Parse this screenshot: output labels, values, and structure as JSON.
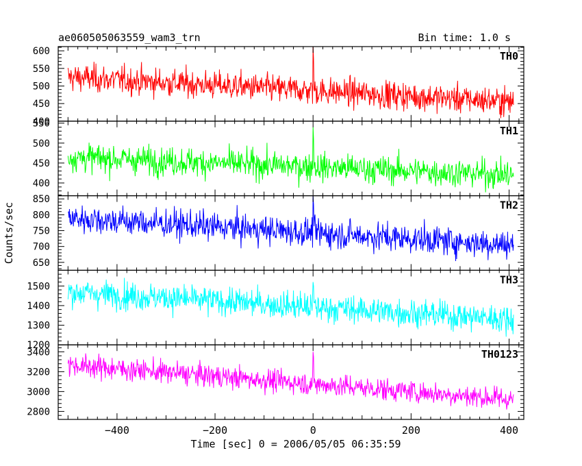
{
  "chart_data": {
    "type": "line",
    "title": "ae060505063559_wam3_trn",
    "subtitle": "Bin time: 1.0 s",
    "ylabel": "Counts/sec",
    "xlabel": "Time [sec] 0 = 2006/05/05 06:35:59",
    "xlim": [
      -520,
      430
    ],
    "x_ticks": [
      -400,
      -200,
      0,
      200,
      400
    ],
    "x_tick_labels": [
      "−400",
      "−200",
      "0",
      "200",
      "400"
    ],
    "bin_time_s": 1.0,
    "x_range": [
      -500,
      409
    ],
    "burst_time": 0,
    "series": [
      {
        "name": "TH0",
        "color": "#ff0000",
        "ylim": [
          400,
          612
        ],
        "y_ticks": [
          400,
          450,
          500,
          550,
          600
        ],
        "start_mean": 525,
        "end_mean": 455,
        "sigma": 28,
        "burst_peak": 612
      },
      {
        "name": "TH1",
        "color": "#00ff00",
        "ylim": [
          368,
          555
        ],
        "y_ticks": [
          400,
          450,
          500,
          550
        ],
        "start_mean": 465,
        "end_mean": 420,
        "sigma": 25,
        "burst_peak": 540
      },
      {
        "name": "TH2",
        "color": "#0000ff",
        "ylim": [
          625,
          860
        ],
        "y_ticks": [
          650,
          700,
          750,
          800,
          850
        ],
        "start_mean": 790,
        "end_mean": 705,
        "sigma": 32,
        "burst_peak": 860
      },
      {
        "name": "TH3",
        "color": "#00ffff",
        "ylim": [
          1200,
          1580
        ],
        "y_ticks": [
          1200,
          1300,
          1400,
          1500
        ],
        "start_mean": 1470,
        "end_mean": 1330,
        "sigma": 50,
        "burst_peak": 1520
      },
      {
        "name": "TH0123",
        "color": "#ff00ff",
        "ylim": [
          2720,
          3470
        ],
        "y_ticks": [
          2800,
          3000,
          3200,
          3400
        ],
        "start_mean": 3270,
        "end_mean": 2920,
        "sigma": 80,
        "burst_peak": 3400
      }
    ]
  }
}
